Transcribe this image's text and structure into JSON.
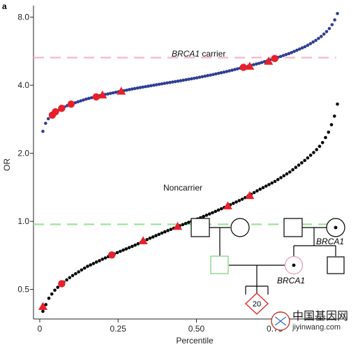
{
  "panel_label": "a",
  "watermark": {
    "text": "中国基因网",
    "url": "jiyinwang.com"
  },
  "pedigree": {
    "labels": [
      "BRCA1",
      "BRCA1"
    ],
    "proband_number": "20",
    "affected_color": "#7fd67f",
    "carrier_color": "#e8a0b4",
    "proband_color": "#e02020"
  },
  "chart_data": {
    "type": "scatter",
    "xlabel": "Percentile",
    "ylabel": "OR",
    "xlim": [
      -0.02,
      0.98
    ],
    "ylim": [
      0.37,
      9.0
    ],
    "y_scale": "log",
    "x_ticks": [
      0,
      0.25,
      0.5,
      0.75
    ],
    "x_tick_labels": [
      "0",
      "0.25",
      "0.50",
      "0.75"
    ],
    "y_ticks": [
      0.5,
      1.0,
      2.0,
      4.0,
      8.0
    ],
    "y_tick_labels": [
      "0.5",
      "1.0",
      "2.0",
      "4.0",
      "8.0"
    ],
    "grid": false,
    "legend": "none",
    "reference_lines": [
      {
        "y": 5.3,
        "color": "#f4b6c8",
        "style": "dashed"
      },
      {
        "y": 0.97,
        "color": "#9be39b",
        "style": "dashed"
      }
    ],
    "series": [
      {
        "label": "BRCA1 carrier",
        "label_italic": "BRCA1",
        "label_rest": " carrier",
        "color": "#2e3e93",
        "x": [
          0.01,
          0.02,
          0.03,
          0.04,
          0.05,
          0.06,
          0.07,
          0.08,
          0.09,
          0.1,
          0.15,
          0.2,
          0.25,
          0.3,
          0.35,
          0.4,
          0.45,
          0.5,
          0.55,
          0.6,
          0.65,
          0.7,
          0.75,
          0.8,
          0.85,
          0.88,
          0.9,
          0.92,
          0.93,
          0.94,
          0.95
        ],
        "y": [
          2.5,
          2.75,
          2.88,
          2.97,
          3.04,
          3.1,
          3.16,
          3.21,
          3.26,
          3.3,
          3.48,
          3.62,
          3.74,
          3.86,
          3.97,
          4.08,
          4.19,
          4.31,
          4.45,
          4.61,
          4.8,
          5.0,
          5.25,
          5.55,
          5.95,
          6.3,
          6.6,
          7.0,
          7.3,
          7.7,
          8.3
        ]
      },
      {
        "label": "Noncarrier",
        "color": "#000000",
        "x": [
          0.01,
          0.02,
          0.03,
          0.04,
          0.05,
          0.07,
          0.1,
          0.15,
          0.2,
          0.25,
          0.3,
          0.35,
          0.4,
          0.45,
          0.5,
          0.55,
          0.6,
          0.65,
          0.7,
          0.75,
          0.8,
          0.85,
          0.88,
          0.9,
          0.92,
          0.93,
          0.94,
          0.95
        ],
        "y": [
          0.4,
          0.43,
          0.46,
          0.48,
          0.5,
          0.53,
          0.57,
          0.63,
          0.68,
          0.73,
          0.78,
          0.84,
          0.9,
          0.96,
          1.02,
          1.09,
          1.17,
          1.26,
          1.38,
          1.5,
          1.66,
          1.88,
          2.05,
          2.2,
          2.45,
          2.65,
          2.9,
          3.3
        ]
      }
    ],
    "highlighted": [
      {
        "series": "BRCA1 carrier",
        "shape": "circle",
        "x": 0.04,
        "y": 2.95
      },
      {
        "series": "BRCA1 carrier",
        "shape": "circle",
        "x": 0.05,
        "y": 3.05
      },
      {
        "series": "BRCA1 carrier",
        "shape": "circle",
        "x": 0.07,
        "y": 3.16
      },
      {
        "series": "BRCA1 carrier",
        "shape": "circle",
        "x": 0.1,
        "y": 3.3
      },
      {
        "series": "BRCA1 carrier",
        "shape": "circle",
        "x": 0.18,
        "y": 3.55
      },
      {
        "series": "BRCA1 carrier",
        "shape": "triangle",
        "x": 0.2,
        "y": 3.62
      },
      {
        "series": "BRCA1 carrier",
        "shape": "triangle",
        "x": 0.26,
        "y": 3.76
      },
      {
        "series": "BRCA1 carrier",
        "shape": "circle",
        "x": 0.65,
        "y": 4.8
      },
      {
        "series": "BRCA1 carrier",
        "shape": "triangle",
        "x": 0.67,
        "y": 4.85
      },
      {
        "series": "BRCA1 carrier",
        "shape": "triangle",
        "x": 0.73,
        "y": 5.1
      },
      {
        "series": "BRCA1 carrier",
        "shape": "circle",
        "x": 0.75,
        "y": 5.25
      },
      {
        "series": "Noncarrier",
        "shape": "triangle",
        "x": 0.01,
        "y": 0.42
      },
      {
        "series": "Noncarrier",
        "shape": "circle",
        "x": 0.07,
        "y": 0.53
      },
      {
        "series": "Noncarrier",
        "shape": "circle",
        "x": 0.23,
        "y": 0.71
      },
      {
        "series": "Noncarrier",
        "shape": "triangle",
        "x": 0.33,
        "y": 0.82
      },
      {
        "series": "Noncarrier",
        "shape": "triangle",
        "x": 0.44,
        "y": 0.95
      },
      {
        "series": "Noncarrier",
        "shape": "triangle",
        "x": 0.6,
        "y": 1.17
      },
      {
        "series": "Noncarrier",
        "shape": "triangle",
        "x": 0.67,
        "y": 1.3
      }
    ],
    "highlight_color": "#e8202a"
  }
}
